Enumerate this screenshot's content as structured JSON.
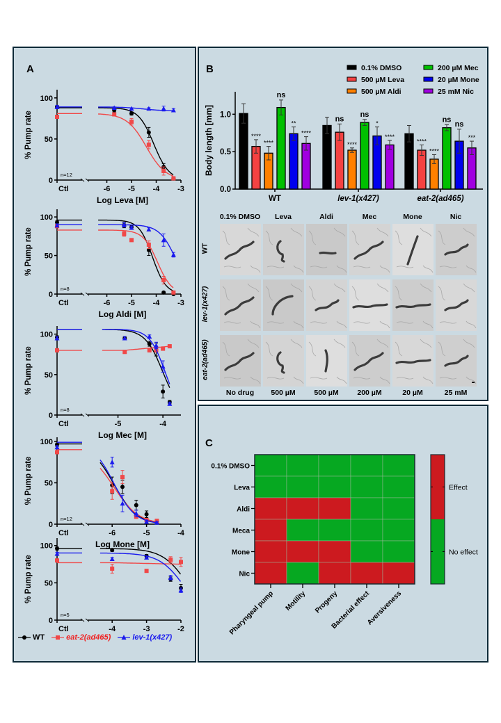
{
  "panels": {
    "A": "A",
    "B": "B",
    "C": "C"
  },
  "colors": {
    "wt": "#000000",
    "eat2": "#f04848",
    "lev1": "#1a1aee",
    "dmso": "#000000",
    "leva": "#f44242",
    "aldi": "#ff8000",
    "mec": "#00c000",
    "mone": "#0000ee",
    "nic": "#a000e0",
    "effect": "#cc1a1f",
    "no_effect": "#06a821",
    "panel_bg": "#cbdae2",
    "panel_border": "#0e2a38"
  },
  "legendA": [
    {
      "label": "WT",
      "color": "#000000",
      "marker": "circle"
    },
    {
      "label": "eat-2(ad465)",
      "color": "#f04848",
      "marker": "square"
    },
    {
      "label": "lev-1(x427)",
      "color": "#1a1aee",
      "marker": "triangle"
    }
  ],
  "chart_data": [
    {
      "type": "scatter",
      "panel": "A",
      "title": "",
      "xlabel": "Log Leva [M]",
      "ylabel": "% Pump rate",
      "n_label": "n=12",
      "xticks": [
        "Ctl",
        "-6",
        "-5",
        "-4",
        "-3"
      ],
      "xtick_values": [
        null,
        -6,
        -5,
        -4,
        -3
      ],
      "xlim": [
        -6.6,
        -3
      ],
      "yticks": [
        0,
        50,
        100
      ],
      "ylim": [
        0,
        110
      ],
      "series": [
        {
          "name": "WT",
          "ctl": 89,
          "x": [
            -5.7,
            -5.0,
            -4.3,
            -3.7,
            -3.3
          ],
          "y": [
            85,
            81,
            58,
            16,
            2
          ],
          "err": [
            2,
            2,
            6,
            4,
            2
          ],
          "fit": {
            "top": 88,
            "bottom": 0,
            "logec50": -4.1,
            "hill": 1.4
          }
        },
        {
          "name": "eat-2(ad465)",
          "ctl": 77,
          "x": [
            -5.7,
            -5.0,
            -4.3,
            -3.7,
            -3.3
          ],
          "y": [
            80,
            71,
            43,
            11,
            2
          ],
          "err": [
            2,
            4,
            5,
            5,
            2
          ],
          "fit": {
            "top": 81,
            "bottom": 0,
            "logec50": -4.4,
            "hill": 1.1
          }
        },
        {
          "name": "lev-1(x427)",
          "ctl": 89,
          "x": [
            -5.7,
            -5.0,
            -4.3,
            -3.7,
            -3.3
          ],
          "y": [
            88,
            87,
            87,
            87,
            85
          ],
          "err": [
            1,
            1,
            1,
            3,
            2
          ],
          "fit": {
            "top": 89,
            "bottom": 84,
            "logec50": -4.5,
            "hill": 1
          }
        }
      ]
    },
    {
      "type": "scatter",
      "panel": "A",
      "xlabel": "Log Aldi [M]",
      "ylabel": "% Pump rate",
      "n_label": "n=8",
      "xticks": [
        "Ctl",
        "-6",
        "-5",
        "-4",
        "-3"
      ],
      "xtick_values": [
        null,
        -6,
        -5,
        -4,
        -3
      ],
      "xlim": [
        -6.6,
        -3
      ],
      "yticks": [
        0,
        50,
        100
      ],
      "ylim": [
        0,
        110
      ],
      "series": [
        {
          "name": "WT",
          "ctl": 93,
          "x": [
            -5.3,
            -5.0,
            -4.3,
            -3.7,
            -3.3
          ],
          "y": [
            89,
            87,
            57,
            2,
            0
          ],
          "err": [
            3,
            2,
            7,
            1,
            1
          ],
          "fit": {
            "top": 96,
            "bottom": 0,
            "logec50": -4.15,
            "hill": 1.6
          }
        },
        {
          "name": "eat-2(ad465)",
          "ctl": 88,
          "x": [
            -5.3,
            -5.0,
            -4.3,
            -3.7,
            -3.3
          ],
          "y": [
            78,
            70,
            64,
            18,
            2
          ],
          "err": [
            3,
            2,
            5,
            5,
            1
          ],
          "fit": {
            "top": 83,
            "bottom": 0,
            "logec50": -3.95,
            "hill": 1.5
          }
        },
        {
          "name": "lev-1(x427)",
          "ctl": 89,
          "x": [
            -5.3,
            -5.0,
            -4.3,
            -3.7,
            -3.3
          ],
          "y": [
            90,
            86,
            84,
            70,
            51
          ],
          "err": [
            3,
            2,
            2,
            8,
            3
          ],
          "fit": {
            "top": 90,
            "bottom": 0,
            "logec50": -3.2,
            "hill": 1.3
          }
        }
      ]
    },
    {
      "type": "scatter",
      "panel": "A",
      "xlabel": "Log Mec [M]",
      "ylabel": "% Pump rate",
      "n_label": "n=8",
      "xticks": [
        "Ctl",
        "-5",
        "-4"
      ],
      "xtick_values": [
        null,
        -5,
        -4
      ],
      "xlim": [
        -6.6,
        -3.6
      ],
      "yticks": [
        0,
        50,
        100
      ],
      "ylim": [
        0,
        110
      ],
      "series": [
        {
          "name": "WT",
          "ctl": 96,
          "x": [
            -4.85,
            -4.3,
            -4.15,
            -4.0,
            -3.85
          ],
          "y": [
            95,
            88,
            81,
            29,
            16
          ],
          "err": [
            2,
            3,
            8,
            8,
            2
          ],
          "fit": {
            "top": 106,
            "bottom": 0,
            "logec50": -4.0,
            "hill": 2.2
          }
        },
        {
          "name": "eat-2(ad465)",
          "ctl": 80,
          "x": [
            -4.85,
            -4.3,
            -4.15,
            -4.0,
            -3.85
          ],
          "y": [
            78,
            80,
            80,
            82,
            85
          ],
          "err": [
            2,
            2,
            2,
            2,
            2
          ],
          "fit": {
            "linear": true,
            "y0": 80,
            "y1": 85
          }
        },
        {
          "name": "lev-1(x427)",
          "ctl": 95,
          "x": [
            -4.85,
            -4.3,
            -4.15,
            -4.0,
            -3.85
          ],
          "y": [
            95,
            97,
            86,
            60,
            14
          ],
          "err": [
            2,
            2,
            4,
            7,
            2
          ],
          "fit": {
            "top": 106,
            "bottom": 0,
            "logec50": -3.95,
            "hill": 2.5
          }
        }
      ]
    },
    {
      "type": "scatter",
      "panel": "A",
      "xlabel": "Log Mone [M]",
      "ylabel": "% Pump rate",
      "n_label": "n=12",
      "xticks": [
        "Ctl",
        "-6",
        "-5",
        "-4"
      ],
      "xtick_values": [
        null,
        -6,
        -5,
        -4
      ],
      "xlim": [
        -7.4,
        -4
      ],
      "yticks": [
        0,
        50,
        100
      ],
      "ylim": [
        0,
        105
      ],
      "series": [
        {
          "name": "WT",
          "ctl": 96,
          "x": [
            -6.0,
            -5.7,
            -5.3,
            -5.0,
            -4.7
          ],
          "y": [
            47,
            45,
            23,
            12,
            2
          ],
          "err": [
            10,
            8,
            6,
            4,
            2
          ],
          "fit": {
            "top": 97,
            "bottom": 0,
            "logec50": -5.95,
            "hill": 1.3
          }
        },
        {
          "name": "eat-2(ad465)",
          "ctl": 87,
          "x": [
            -6.0,
            -5.7,
            -5.3,
            -5.0,
            -4.7
          ],
          "y": [
            40,
            57,
            9,
            5,
            4
          ],
          "err": [
            10,
            8,
            2,
            2,
            2
          ],
          "fit": {
            "top": 90,
            "bottom": 0,
            "logec50": -5.95,
            "hill": 1.2
          }
        },
        {
          "name": "lev-1(x427)",
          "ctl": 93,
          "x": [
            -6.0,
            -5.7,
            -5.3,
            -5.0,
            -4.7
          ],
          "y": [
            75,
            25,
            13,
            3,
            2
          ],
          "err": [
            6,
            10,
            4,
            2,
            1
          ],
          "fit": {
            "top": 99,
            "bottom": 0,
            "logec50": -5.95,
            "hill": 1.4
          }
        }
      ]
    },
    {
      "type": "scatter",
      "panel": "A",
      "xlabel": "Log Nic [M]",
      "ylabel": "% Pump rate",
      "n_label": "n=5",
      "xticks": [
        "Ctl",
        "-4",
        "-3",
        "-2"
      ],
      "xtick_values": [
        null,
        -4,
        -3,
        -2
      ],
      "xlim": [
        -5.6,
        -2
      ],
      "yticks": [
        0,
        50,
        100
      ],
      "ylim": [
        0,
        110
      ],
      "series": [
        {
          "name": "WT",
          "ctl": 96,
          "x": [
            -4.0,
            -3.0,
            -2.3,
            -2.0
          ],
          "y": [
            94,
            86,
            55,
            43
          ],
          "err": [
            2,
            2,
            3,
            5
          ],
          "fit": {
            "top": 96,
            "bottom": 0,
            "logec50": -1.8,
            "hill": 1.2
          }
        },
        {
          "name": "eat-2(ad465)",
          "ctl": 80,
          "x": [
            -4.0,
            -3.0,
            -2.3,
            -2.0
          ],
          "y": [
            69,
            66,
            81,
            78
          ],
          "err": [
            6,
            2,
            4,
            6
          ],
          "fit": {
            "linear": true,
            "y0": 77,
            "y1": 75
          }
        },
        {
          "name": "lev-1(x427)",
          "ctl": 89,
          "x": [
            -4.0,
            -3.0,
            -2.3,
            -2.0
          ],
          "y": [
            82,
            84,
            57,
            40
          ],
          "err": [
            2,
            2,
            3,
            3
          ],
          "fit": {
            "top": 90,
            "bottom": 0,
            "logec50": -1.9,
            "hill": 1.2
          }
        }
      ]
    },
    {
      "type": "bar",
      "panel": "B",
      "ylabel": "Body length [mm]",
      "yticks": [
        "0.0",
        "0.5",
        "1.0"
      ],
      "ylim": [
        0,
        1.3
      ],
      "categories": [
        "WT",
        "lev-1(x427)",
        "eat-2(ad465)"
      ],
      "category_italic": [
        false,
        true,
        true
      ],
      "legend": [
        "0.1% DMSO",
        "500 µM Leva",
        "500 µM Aldi",
        "200 µM Mec",
        "20 µM Mone",
        "25 mM Nic"
      ],
      "legend_placement": "top-right",
      "series": [
        {
          "name": "0.1% DMSO",
          "color": "#000000",
          "values": [
            1.01,
            0.85,
            0.74
          ],
          "err": [
            0.13,
            0.11,
            0.11
          ],
          "sig": [
            "",
            "",
            ""
          ]
        },
        {
          "name": "500 µM Leva",
          "color": "#f44242",
          "values": [
            0.57,
            0.76,
            0.52
          ],
          "err": [
            0.09,
            0.11,
            0.07
          ],
          "sig": [
            "****",
            "ns",
            "****"
          ]
        },
        {
          "name": "500 µM Aldi",
          "color": "#ff8000",
          "values": [
            0.48,
            0.52,
            0.4
          ],
          "err": [
            0.09,
            0.03,
            0.06
          ],
          "sig": [
            "****",
            "****",
            "****"
          ]
        },
        {
          "name": "200 µM Mec",
          "color": "#00c000",
          "values": [
            1.09,
            0.89,
            0.82
          ],
          "err": [
            0.1,
            0.04,
            0.04
          ],
          "sig": [
            "ns",
            "ns",
            "ns"
          ]
        },
        {
          "name": "20 µM Mone",
          "color": "#0000ee",
          "values": [
            0.74,
            0.71,
            0.64
          ],
          "err": [
            0.09,
            0.12,
            0.16
          ],
          "sig": [
            "**",
            "*",
            "ns"
          ]
        },
        {
          "name": "25 mM Nic",
          "color": "#a000e0",
          "values": [
            0.61,
            0.59,
            0.55
          ],
          "err": [
            0.09,
            0.06,
            0.09
          ],
          "sig": [
            "****",
            "****",
            "***"
          ]
        }
      ]
    },
    {
      "type": "heatmap",
      "panel": "C",
      "rows": [
        "0.1% DMSO",
        "Leva",
        "Aldi",
        "Meca",
        "Mone",
        "Nic"
      ],
      "columns": [
        "Pharyngeal pump",
        "Motility",
        "Progeny",
        "Bacterial effect",
        "Aversiveness"
      ],
      "values": [
        [
          0,
          0,
          0,
          0,
          0
        ],
        [
          0,
          0,
          0,
          0,
          0
        ],
        [
          1,
          1,
          1,
          0,
          0
        ],
        [
          1,
          0,
          0,
          0,
          0
        ],
        [
          1,
          1,
          1,
          0,
          0
        ],
        [
          1,
          0,
          1,
          1,
          1
        ]
      ],
      "colorbar": [
        {
          "value": 1,
          "label": "Effect"
        },
        {
          "value": 0,
          "label": "No effect"
        }
      ]
    }
  ],
  "worms": {
    "col_labels": [
      "0.1% DMSO",
      "Leva",
      "Aldi",
      "Mec",
      "Mone",
      "Nic"
    ],
    "row_labels": [
      "WT",
      "lev-1(x427)",
      "eat-2(ad465)"
    ],
    "bottom_labels": [
      "No drug",
      "500 µM",
      "500 µM",
      "200 µM",
      "20 µM",
      "25 mM"
    ],
    "shapes": [
      [
        "long-wave",
        "curled",
        "short",
        "long-wave",
        "long-diag",
        "short-wave"
      ],
      [
        "long-wave",
        "long-arc",
        "short-wave",
        "long-flat",
        "long-flat",
        "short-wave"
      ],
      [
        "long-wave",
        "curled",
        "short-vert",
        "long-wave",
        "long-flat",
        "short-wave"
      ]
    ]
  }
}
